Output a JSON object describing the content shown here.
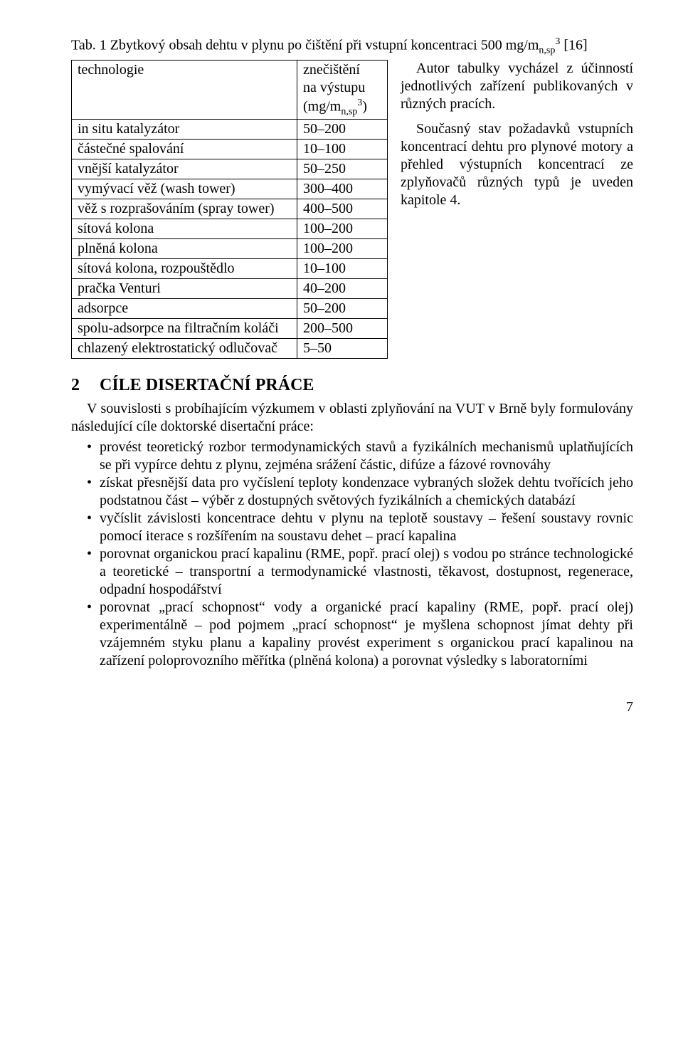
{
  "caption": {
    "pre": "Tab. 1 Zbytkový obsah dehtu v plynu po čištění při vstupní koncentraci 500 mg/m",
    "sub": "n,sp",
    "sup": "3",
    "post": " [16]"
  },
  "table": {
    "header_left": "technologie",
    "header_right_l1": "znečištění",
    "header_right_l2": "na výstupu",
    "header_right_l3_pre": "(mg/m",
    "header_right_l3_sub": "n,sp",
    "header_right_l3_sup": "3",
    "header_right_l3_post": ")",
    "rows": [
      {
        "tech": "in situ katalyzátor",
        "val": "50–200"
      },
      {
        "tech": "částečné spalování",
        "val": "10–100"
      },
      {
        "tech": "vnější katalyzátor",
        "val": "50–250"
      },
      {
        "tech": "vymývací věž (wash tower)",
        "val": "300–400"
      },
      {
        "tech": "věž s rozprašováním (spray tower)",
        "val": "400–500"
      },
      {
        "tech": "sítová kolona",
        "val": "100–200"
      },
      {
        "tech": "plněná kolona",
        "val": "100–200"
      },
      {
        "tech": "sítová kolona, rozpouštědlo",
        "val": "10–100"
      },
      {
        "tech": "pračka Venturi",
        "val": "40–200"
      },
      {
        "tech": "adsorpce",
        "val": "50–200"
      },
      {
        "tech": "spolu-adsorpce na filtračním koláči",
        "val": "200–500"
      },
      {
        "tech": "chlazený elektrostatický odlučovač",
        "val": "5–50"
      }
    ]
  },
  "side_paragraphs": [
    "Autor tabulky vycházel z účinností jednotlivých zařízení publikovaných v různých pracích.",
    "Současný stav požadavků vstupních koncentrací dehtu pro plynové motory a přehled výstupních koncentrací ze zplyňovačů různých typů je uveden kapitole 4."
  ],
  "section": {
    "num": "2",
    "title": "CÍLE DISERTAČNÍ PRÁCE"
  },
  "intro": "V souvislosti s probíhajícím výzkumem v oblasti zplyňování na VUT v Brně byly formulovány následující cíle doktorské disertační práce:",
  "bullets": [
    "provést teoretický rozbor termodynamických stavů a fyzikálních mechanismů uplatňujících se při vypírce dehtu z plynu, zejména srážení částic, difúze a fázové rovnováhy",
    "získat přesnější data pro vyčíslení teploty kondenzace vybraných složek dehtu tvořících jeho podstatnou část – výběr z dostupných světových fyzikálních a chemických databází",
    "vyčíslit závislosti koncentrace dehtu v plynu na teplotě soustavy – řešení soustavy rovnic pomocí iterace s rozšířením na soustavu dehet – prací kapalina",
    "porovnat organickou prací kapalinu (RME, popř. prací olej) s vodou po stránce technologické a teoretické – transportní a termodynamické vlastnosti, těkavost, dostupnost, regenerace, odpadní hospodářství",
    "porovnat „prací schopnost“ vody a organické prací kapaliny (RME, popř. prací olej) experimentálně – pod pojmem „prací schopnost“ je myšlena schopnost jímat dehty při vzájemném styku planu a kapaliny provést experiment s organickou prací kapalinou na zařízení poloprovozního měřítka (plněná kolona) a porovnat výsledky s laboratorními"
  ],
  "page_number": "7"
}
